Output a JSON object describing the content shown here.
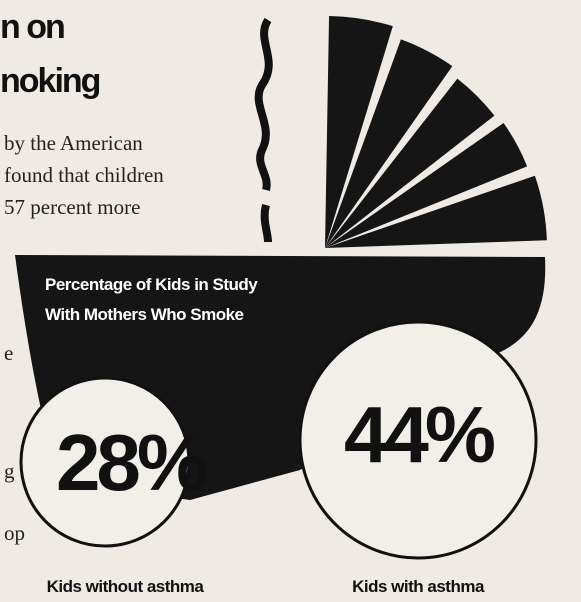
{
  "headline": {
    "lines": [
      "n on",
      "noking"
    ]
  },
  "body": {
    "lines": [
      "by the American",
      "found that children",
      "57 percent more"
    ]
  },
  "margin_fragments": [
    "e",
    "g",
    "op"
  ],
  "graphic": {
    "title_lines": [
      "Percentage of Kids in Study",
      "With Mothers Who Smoke"
    ],
    "groups": [
      {
        "value": "28%",
        "label": "Kids without asthma"
      },
      {
        "value": "44%",
        "label": "Kids with asthma"
      }
    ]
  }
}
